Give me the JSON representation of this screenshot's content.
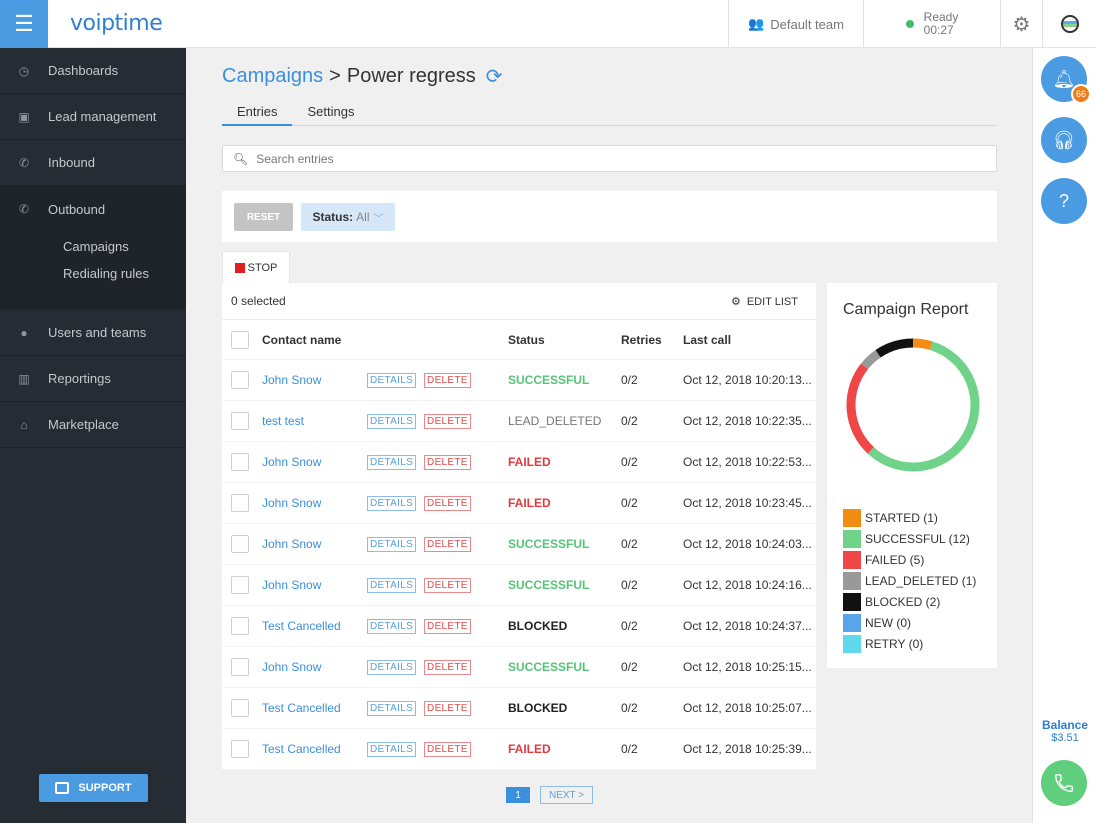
{
  "app": {
    "logo": "voiptime",
    "menu_icon": "hamburger-icon"
  },
  "topbar": {
    "team": "Default team",
    "status": "Ready",
    "status_time": "00:27",
    "status_color": "#3fbf6a"
  },
  "sidebar": {
    "items": [
      {
        "label": "Dashboards",
        "icon": "dashboard-icon"
      },
      {
        "label": "Lead management",
        "icon": "lead-icon"
      },
      {
        "label": "Inbound",
        "icon": "inbound-icon"
      },
      {
        "label": "Outbound",
        "icon": "outbound-icon"
      },
      {
        "label": "Users and teams",
        "icon": "users-icon"
      },
      {
        "label": "Reportings",
        "icon": "reportings-icon"
      },
      {
        "label": "Marketplace",
        "icon": "marketplace-icon"
      }
    ],
    "outbound_sub": [
      "Campaigns",
      "Redialing rules"
    ],
    "support_label": "SUPPORT"
  },
  "breadcrumb": {
    "link": "Campaigns",
    "separator": ">",
    "current": "Power regress"
  },
  "tabs": [
    "Entries",
    "Settings"
  ],
  "search": {
    "placeholder": "Search entries",
    "value": ""
  },
  "filters": {
    "reset_label": "RESET",
    "status_label": "Status:",
    "status_value": "All"
  },
  "stop_label": "STOP",
  "table": {
    "selected_text": "0 selected",
    "edit_list_label": "EDIT LIST",
    "headers": [
      "Contact name",
      "Status",
      "Retries",
      "Last call"
    ],
    "details_label": "DETAILS",
    "delete_label": "DELETE",
    "rows": [
      {
        "name": "John Snow",
        "status": "SUCCESSFUL",
        "retries": "0/2",
        "last_call": "Oct 12, 2018 10:20:13..."
      },
      {
        "name": "test test",
        "status": "LEAD_DELETED",
        "retries": "0/2",
        "last_call": "Oct 12, 2018 10:22:35..."
      },
      {
        "name": "John Snow",
        "status": "FAILED",
        "retries": "0/2",
        "last_call": "Oct 12, 2018 10:22:53..."
      },
      {
        "name": "John Snow",
        "status": "FAILED",
        "retries": "0/2",
        "last_call": "Oct 12, 2018 10:23:45..."
      },
      {
        "name": "John Snow",
        "status": "SUCCESSFUL",
        "retries": "0/2",
        "last_call": "Oct 12, 2018 10:24:03..."
      },
      {
        "name": "John Snow",
        "status": "SUCCESSFUL",
        "retries": "0/2",
        "last_call": "Oct 12, 2018 10:24:16..."
      },
      {
        "name": "Test Cancelled",
        "status": "BLOCKED",
        "retries": "0/2",
        "last_call": "Oct 12, 2018 10:24:37..."
      },
      {
        "name": "John Snow",
        "status": "SUCCESSFUL",
        "retries": "0/2",
        "last_call": "Oct 12, 2018 10:25:15..."
      },
      {
        "name": "Test Cancelled",
        "status": "BLOCKED",
        "retries": "0/2",
        "last_call": "Oct 12, 2018 10:25:07..."
      },
      {
        "name": "Test Cancelled",
        "status": "FAILED",
        "retries": "0/2",
        "last_call": "Oct 12, 2018 10:25:39..."
      }
    ]
  },
  "pagination": {
    "current_page": "1",
    "next_label": "NEXT >"
  },
  "report": {
    "title": "Campaign Report",
    "legend": [
      {
        "label": "STARTED (1)",
        "count": 1,
        "color": "#f28c12"
      },
      {
        "label": "SUCCESSFUL (12)",
        "count": 12,
        "color": "#6fd48a"
      },
      {
        "label": "FAILED (5)",
        "count": 5,
        "color": "#ef4747"
      },
      {
        "label": "LEAD_DELETED (1)",
        "count": 1,
        "color": "#999999"
      },
      {
        "label": "BLOCKED (2)",
        "count": 2,
        "color": "#111111"
      },
      {
        "label": "NEW (0)",
        "count": 0,
        "color": "#5aa5ea"
      },
      {
        "label": "RETRY (0)",
        "count": 0,
        "color": "#5fd8ec"
      }
    ]
  },
  "rail": {
    "notification_count": "66",
    "balance_label": "Balance",
    "balance_value": "$3.51"
  }
}
